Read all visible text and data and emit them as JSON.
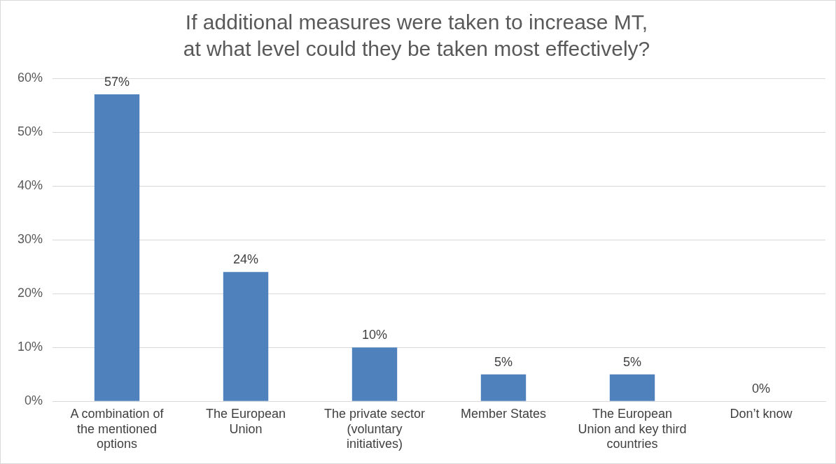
{
  "chart_data": {
    "type": "bar",
    "title": "If additional measures were taken to increase MT,\nat what level could they be taken most effectively?",
    "categories": [
      "A combination of the mentioned options",
      "The European Union",
      "The private sector (voluntary initiatives)",
      "Member States",
      "The European Union and key third countries",
      "Don’t know"
    ],
    "values": [
      57,
      24,
      10,
      5,
      5,
      0
    ],
    "value_labels": [
      "57%",
      "24%",
      "10%",
      "5%",
      "5%",
      "0%"
    ],
    "color": "#4f81bd",
    "ylim": [
      0,
      60
    ],
    "yticks": [
      {
        "value": 0,
        "label": "0%"
      },
      {
        "value": 10,
        "label": "10%"
      },
      {
        "value": 20,
        "label": "20%"
      },
      {
        "value": 30,
        "label": "30%"
      },
      {
        "value": 40,
        "label": "40%"
      },
      {
        "value": 50,
        "label": "50%"
      },
      {
        "value": 60,
        "label": "60%"
      }
    ],
    "grid": "y",
    "legend": false
  }
}
